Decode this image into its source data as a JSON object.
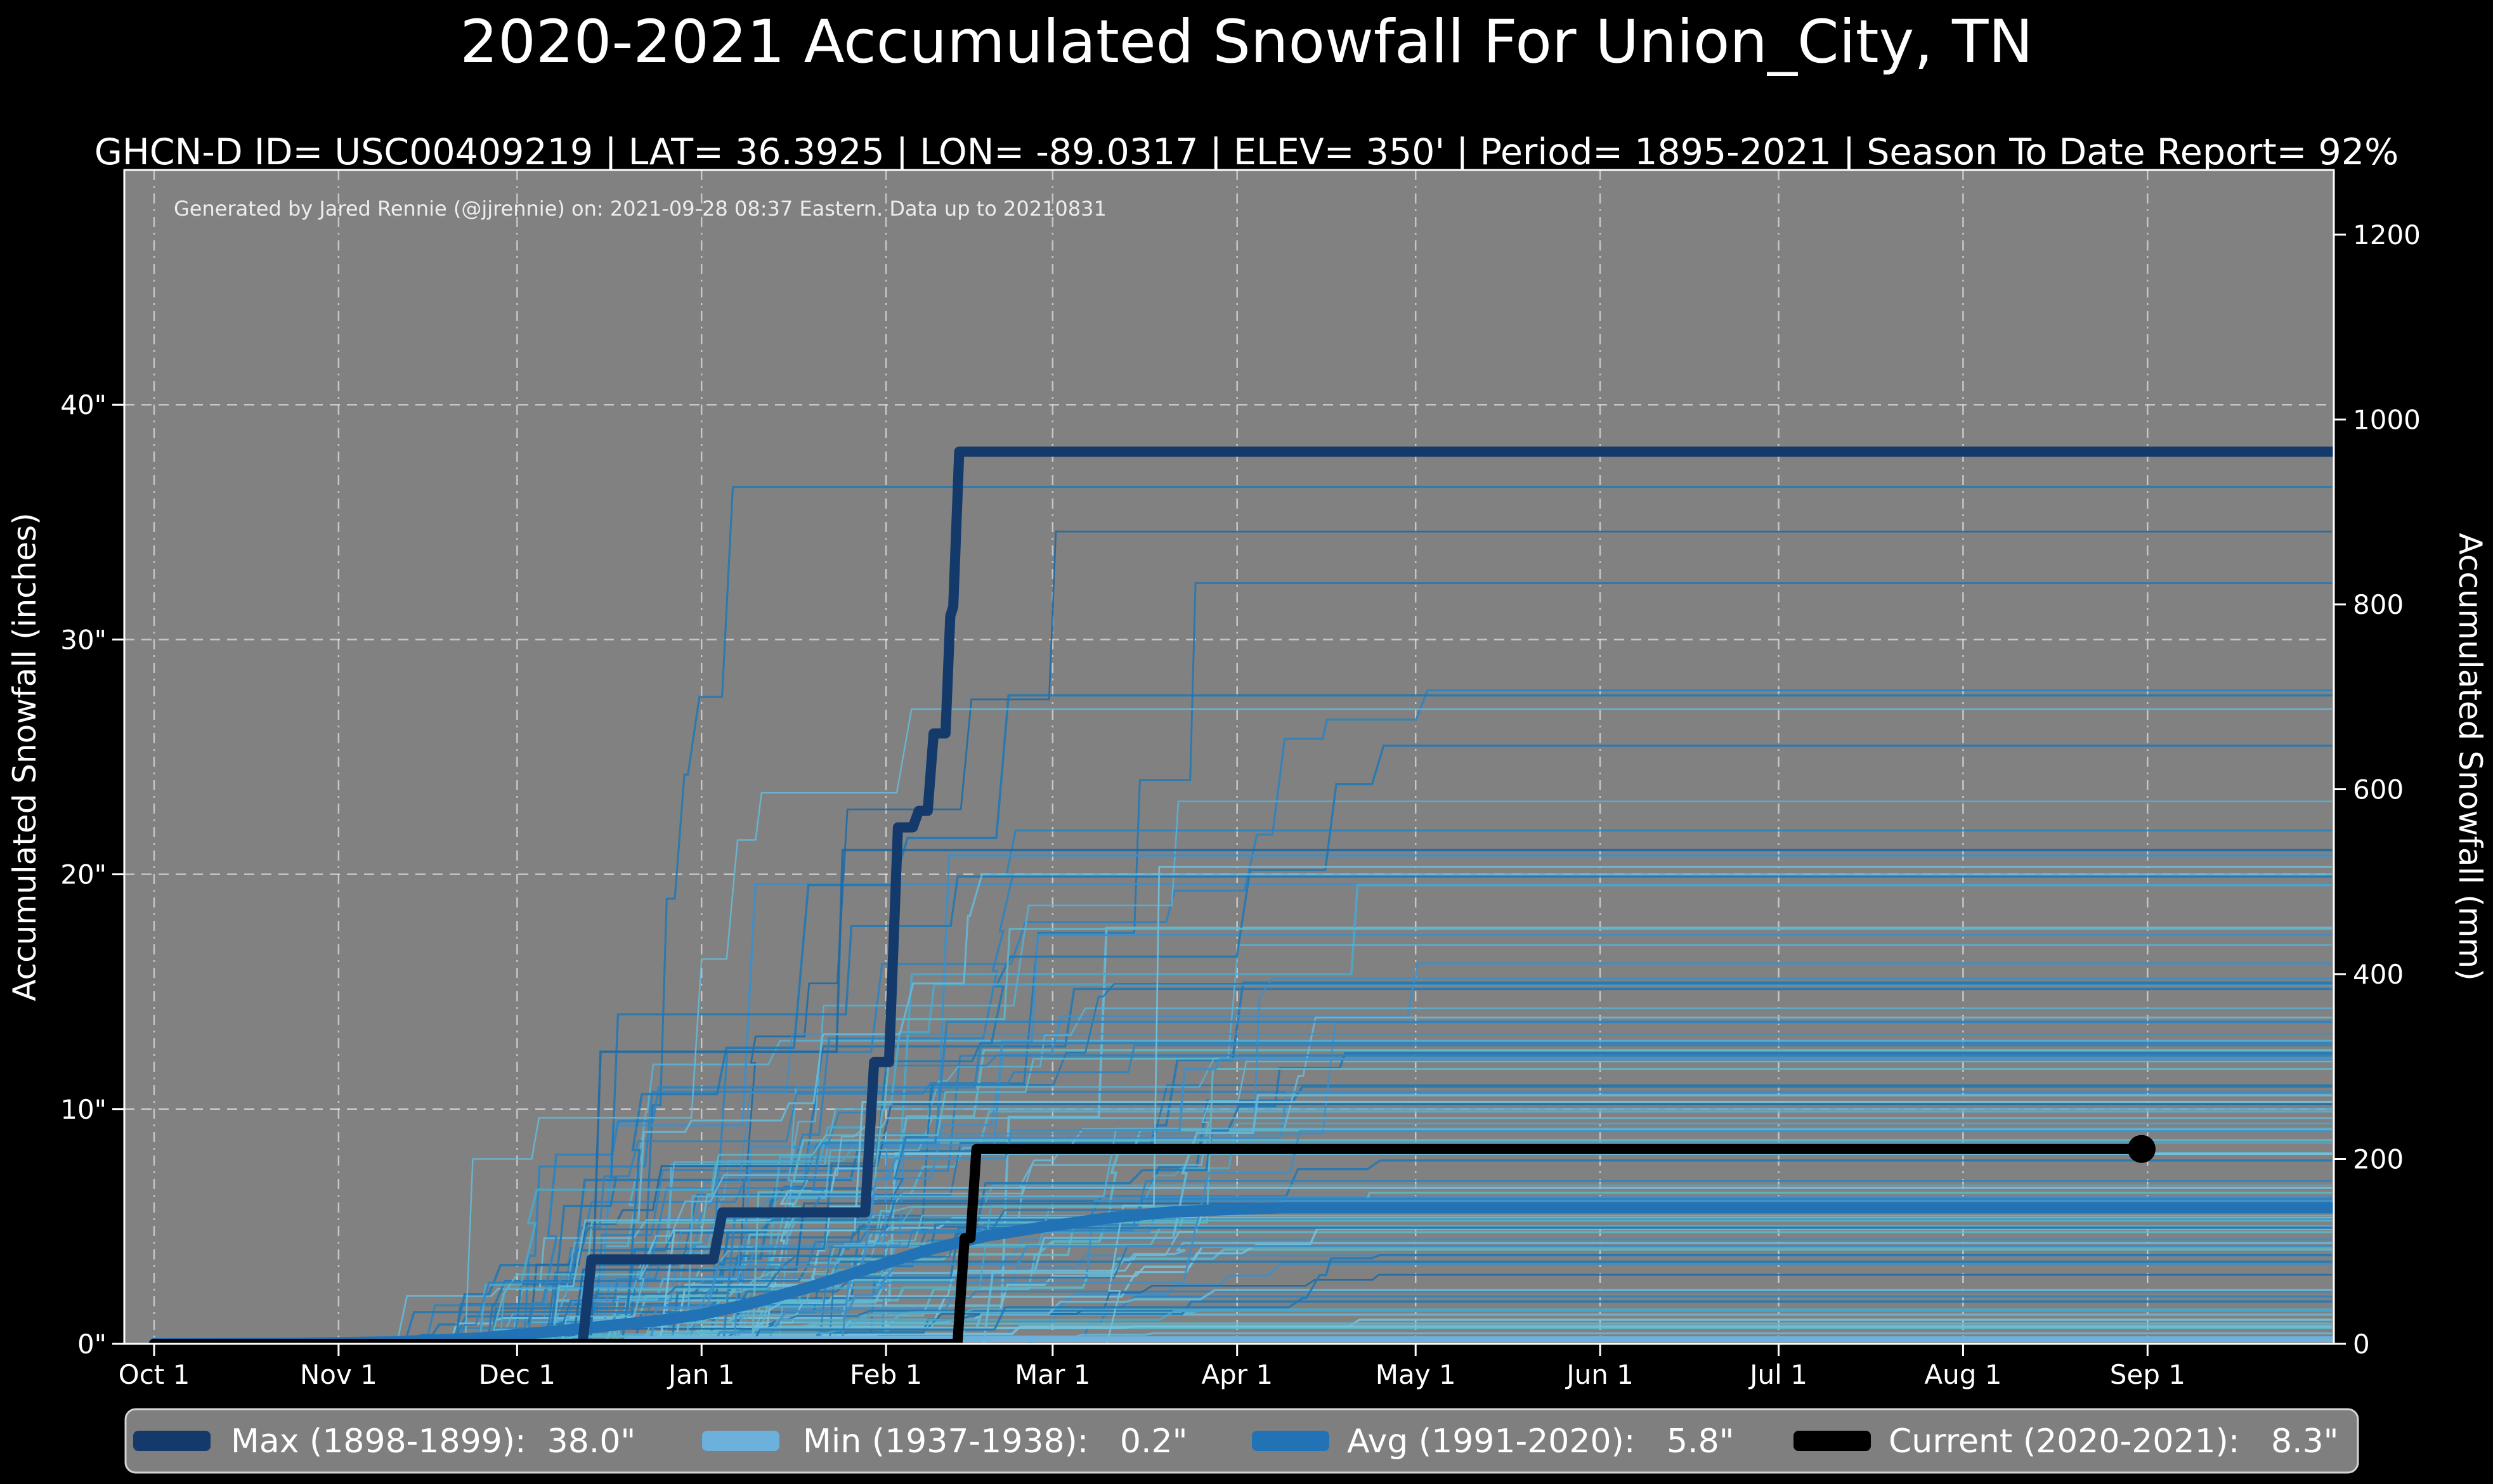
{
  "header": {
    "title": "2020-2021 Accumulated Snowfall For Union_City, TN",
    "subtitle": "GHCN-D ID= USC00409219 | LAT= 36.3925 | LON= -89.0317 | ELEV= 350' | Period= 1895-2021 | Season To Date Report= 92%"
  },
  "layout": {
    "colors": {
      "figure_bg": "#000000",
      "plot_bg": "#818181",
      "text": "#ffffff",
      "grid": "#ffffff",
      "spine": "#ffffff",
      "annotation_text": "#ededed",
      "legend_bg": "#7f7f7f",
      "legend_border": "#d4d4d4"
    }
  },
  "chart_data": {
    "type": "line",
    "title": "2020-2021 Accumulated Snowfall For Union_City, TN",
    "subtitle": "GHCN-D ID= USC00409219 | LAT= 36.3925 | LON= -89.0317 | ELEV= 350' | Period= 1895-2021 | Season To Date Report= 92%",
    "annotation": "Generated by Jared Rennie (@jjrennie) on: 2021-09-28 08:37 Eastern. Data up to 20210831",
    "x_axis": {
      "tick_labels": [
        "Oct 1",
        "Nov 1",
        "Dec 1",
        "Jan 1",
        "Feb 1",
        "Mar 1",
        "Apr 1",
        "May 1",
        "Jun 1",
        "Jul 1",
        "Aug 1",
        "Sep 1"
      ],
      "tick_days": [
        0,
        31,
        61,
        92,
        123,
        151,
        182,
        212,
        243,
        273,
        304,
        335
      ],
      "domain_days": [
        0,
        366
      ],
      "grid": true
    },
    "y_axis_left": {
      "label": "Accumulated Snowfall (inches)",
      "ticks": [
        {
          "value": 0,
          "label": "0\""
        },
        {
          "value": 10,
          "label": "10\""
        },
        {
          "value": 20,
          "label": "20\""
        },
        {
          "value": 30,
          "label": "30\""
        },
        {
          "value": 40,
          "label": "40\""
        }
      ],
      "range_inches": [
        0,
        50
      ],
      "grid": true
    },
    "y_axis_right": {
      "label": "Accumulated Snowfall (mm)",
      "ticks": [
        {
          "value_mm": 0,
          "label": "0"
        },
        {
          "value_mm": 200,
          "label": "200"
        },
        {
          "value_mm": 400,
          "label": "400"
        },
        {
          "value_mm": 600,
          "label": "600"
        },
        {
          "value_mm": 800,
          "label": "800"
        },
        {
          "value_mm": 1000,
          "label": "1000"
        },
        {
          "value_mm": 1200,
          "label": "1200"
        }
      ],
      "range_mm": [
        0,
        1270
      ]
    },
    "series": {
      "max": {
        "name": "Max (1898-1899)",
        "total_label": "38.0\"",
        "color": "#143a6c",
        "width": 16,
        "points_day_inches": [
          [
            0,
            0
          ],
          [
            72,
            0
          ],
          [
            73.5,
            3.6
          ],
          [
            94,
            3.6
          ],
          [
            95.5,
            5.6
          ],
          [
            119.5,
            5.6
          ],
          [
            121,
            12
          ],
          [
            123.5,
            12
          ],
          [
            125,
            22
          ],
          [
            127.5,
            22
          ],
          [
            128.5,
            22.7
          ],
          [
            130,
            22.7
          ],
          [
            131,
            26
          ],
          [
            133,
            26
          ],
          [
            133.8,
            31
          ],
          [
            134.3,
            31.4
          ],
          [
            135.3,
            38
          ],
          [
            366,
            38
          ]
        ]
      },
      "min": {
        "name": "Min (1937-1938)",
        "total_label": "0.2\"",
        "color": "#6cb0dc",
        "width": 9,
        "points_day_inches": [
          [
            0,
            0
          ],
          [
            78,
            0
          ],
          [
            80,
            0.2
          ],
          [
            366,
            0.2
          ]
        ]
      },
      "avg": {
        "name": "Avg (1991-2020)",
        "total_label": "5.8\"",
        "color": "#2272b6",
        "width": 18,
        "points_day_inches": [
          [
            0,
            0
          ],
          [
            25,
            0.02
          ],
          [
            40,
            0.08
          ],
          [
            55,
            0.25
          ],
          [
            70,
            0.6
          ],
          [
            85,
            1.0
          ],
          [
            92,
            1.25
          ],
          [
            100,
            1.7
          ],
          [
            110,
            2.4
          ],
          [
            120,
            3.2
          ],
          [
            130,
            4.0
          ],
          [
            140,
            4.6
          ],
          [
            150,
            5.0
          ],
          [
            160,
            5.35
          ],
          [
            170,
            5.6
          ],
          [
            180,
            5.72
          ],
          [
            190,
            5.8
          ],
          [
            366,
            5.8
          ]
        ]
      },
      "current": {
        "name": "Current (2020-2021)",
        "total_label": "8.3\"",
        "color": "#000000",
        "width": 16,
        "points_day_inches": [
          [
            0,
            0
          ],
          [
            135,
            0
          ],
          [
            136.2,
            4.5
          ],
          [
            137.2,
            4.5
          ],
          [
            138.2,
            8.3
          ],
          [
            334,
            8.3
          ]
        ],
        "end_marker_day_inches": [
          334,
          8.3
        ],
        "end_marker_radius": 22
      }
    },
    "background_years": {
      "description": "Thin step lines for each snow season 1895-2021 (unlabeled spaghetti lines; procedurally approximated)",
      "count": 110,
      "seed": 42,
      "notable_totals_inches": [
        36.5,
        34.6,
        32.4
      ],
      "palette_dark": [
        "#1f77b4",
        "#2b83c0",
        "#1b6aa5",
        "#3c8ec8"
      ],
      "palette_light": [
        "#58b0d4",
        "#66bad8",
        "#49a8cc",
        "#74c2de",
        "#5cb8c8"
      ],
      "total_range_inches": [
        0.2,
        36.5
      ]
    },
    "legend": {
      "items": [
        {
          "key": "max",
          "label": "Max (1898-1899):  38.0\"",
          "color": "#143a6c"
        },
        {
          "key": "min",
          "label": "Min (1937-1938):   0.2\"",
          "color": "#6cb0dc"
        },
        {
          "key": "avg",
          "label": "Avg (1991-2020):   5.8\"",
          "color": "#2272b6"
        },
        {
          "key": "current",
          "label": "Current (2020-2021):   8.3\"",
          "color": "#000000"
        }
      ]
    }
  }
}
